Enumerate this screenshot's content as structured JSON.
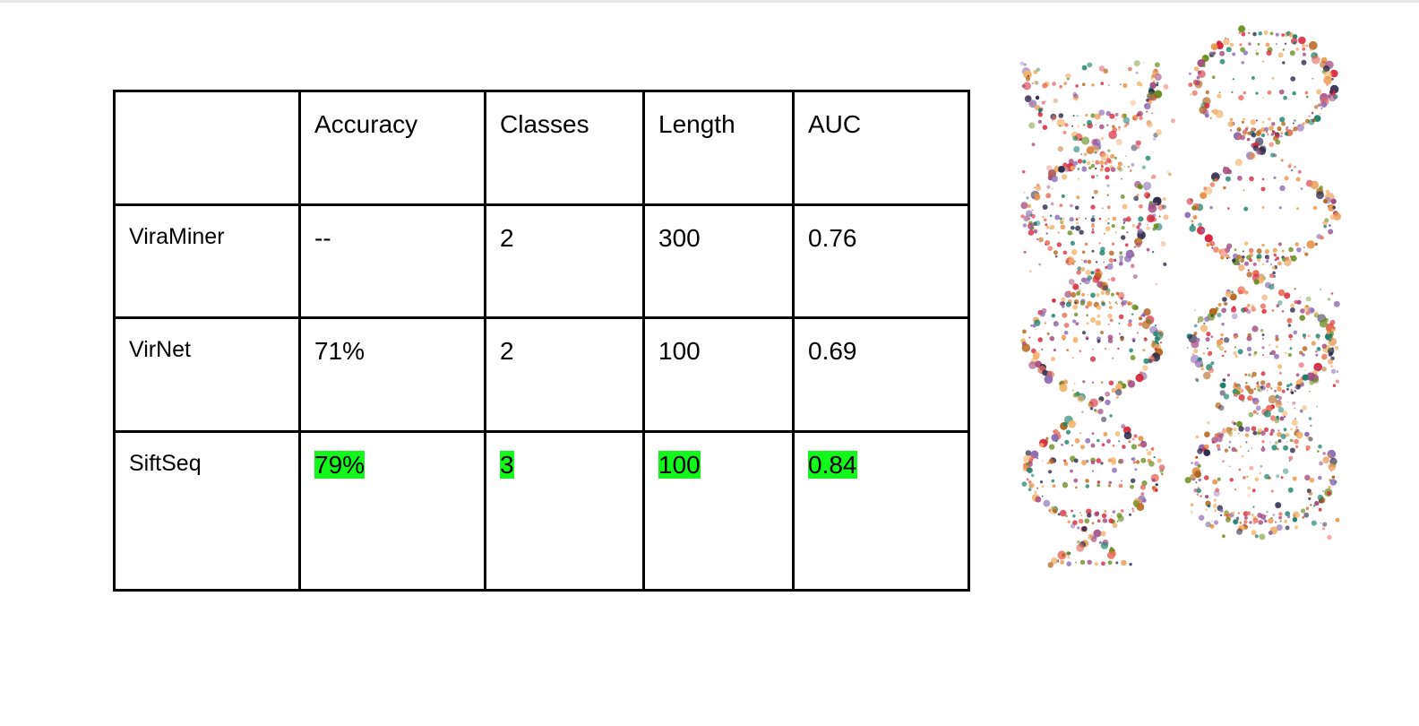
{
  "table": {
    "headers": [
      "",
      "Accuracy",
      "Classes",
      "Length",
      "AUC"
    ],
    "rows": [
      {
        "name": "ViraMiner",
        "accuracy": "--",
        "classes": "2",
        "length": "300",
        "auc": "0.76",
        "highlight": false
      },
      {
        "name": "VirNet",
        "accuracy": "71%",
        "classes": "2",
        "length": "100",
        "auc": "0.69",
        "highlight": false
      },
      {
        "name": "SiftSeq",
        "accuracy": "79%",
        "classes": "3",
        "length": "100",
        "auc": "0.84",
        "highlight": true
      }
    ]
  },
  "colors": {
    "highlight": "#13f71c",
    "border": "#000000",
    "dna_palette": [
      "#d7263d",
      "#e8934a",
      "#f2b36b",
      "#1b7f6b",
      "#2d2a4a",
      "#6b8e23",
      "#a14a7f",
      "#e86a5a",
      "#b5651d",
      "#8c6bb1"
    ]
  },
  "illustration": {
    "icon": "dna-double-helix-icon"
  }
}
